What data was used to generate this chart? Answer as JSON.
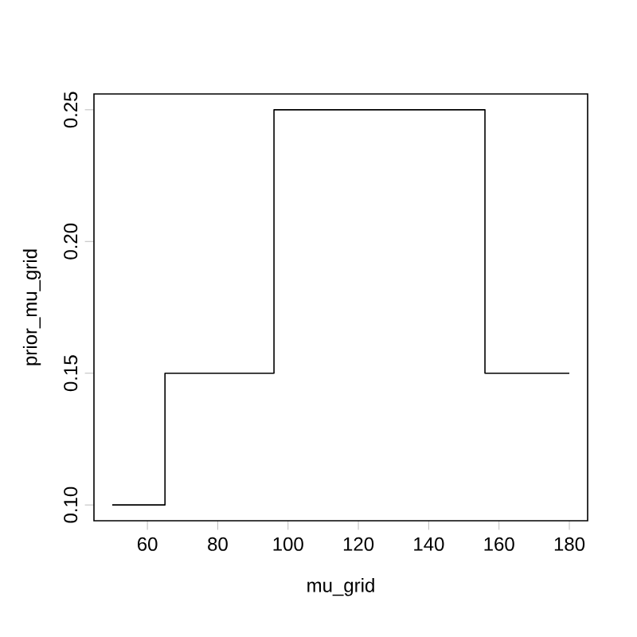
{
  "chart_data": {
    "type": "step",
    "xlabel": "mu_grid",
    "ylabel": "prior_mu_grid",
    "x": [
      50,
      65,
      96,
      156,
      180
    ],
    "values": [
      0.1,
      0.15,
      0.25,
      0.15,
      0.15
    ],
    "color": "#000000",
    "xlim": [
      44.8,
      185.2
    ],
    "ylim": [
      0.094,
      0.256
    ],
    "xticks": [
      60,
      80,
      100,
      120,
      140,
      160,
      180
    ],
    "yticks": [
      {
        "value": 0.1,
        "label": "0.10"
      },
      {
        "value": 0.15,
        "label": "0.15"
      },
      {
        "value": 0.2,
        "label": "0.20"
      },
      {
        "value": 0.25,
        "label": "0.25"
      }
    ]
  }
}
